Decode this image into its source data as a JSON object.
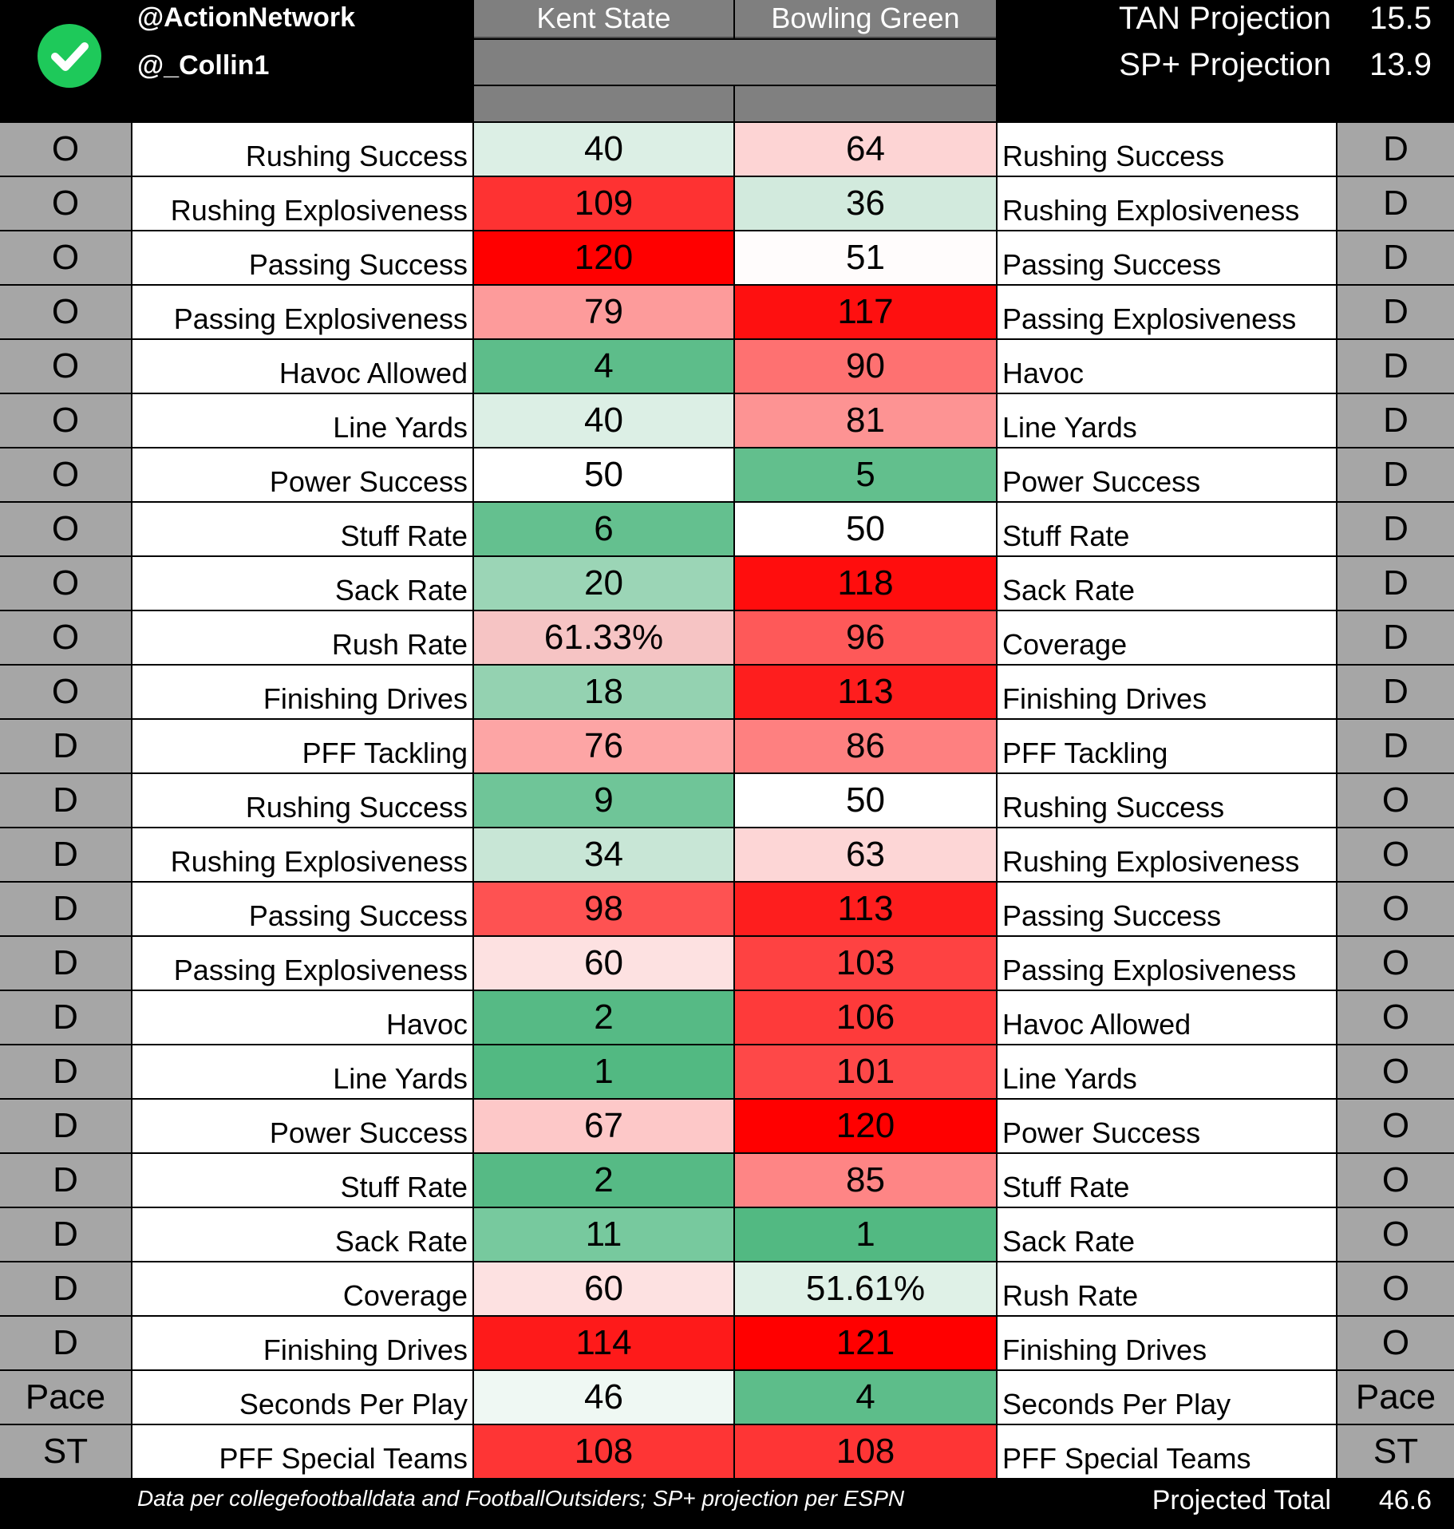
{
  "header": {
    "handle_1": "@ActionNetwork",
    "handle_2": "@_Collin1",
    "team_left": "Kent State",
    "team_right": "Bowling Green",
    "tan_label": "TAN Projection",
    "tan_value": "15.5",
    "sp_label": "SP+ Projection",
    "sp_value": "13.9"
  },
  "rows": [
    {
      "side_l": "O",
      "label_l": "Rushing Success",
      "kent": "40",
      "kent_color": "#dcefe5",
      "bg": "64",
      "bg_color": "#fdd4d4",
      "label_r": "Rushing Success",
      "side_r": "D"
    },
    {
      "side_l": "O",
      "label_l": "Rushing Explosiveness",
      "kent": "109",
      "kent_color": "#fe3232",
      "bg": "36",
      "bg_color": "#d2eadd",
      "label_r": "Rushing Explosiveness",
      "side_r": "D"
    },
    {
      "side_l": "O",
      "label_l": "Passing Success",
      "kent": "120",
      "kent_color": "#ff0000",
      "bg": "51",
      "bg_color": "#fffcfc",
      "label_r": "Passing Success",
      "side_r": "D"
    },
    {
      "side_l": "O",
      "label_l": "Passing Explosiveness",
      "kent": "79",
      "kent_color": "#fd9b9b",
      "bg": "117",
      "bg_color": "#fe1010",
      "label_r": "Passing Explosiveness",
      "side_r": "D"
    },
    {
      "side_l": "O",
      "label_l": "Havoc Allowed",
      "kent": "4",
      "kent_color": "#5dbd8a",
      "bg": "90",
      "bg_color": "#fe7171",
      "label_r": "Havoc",
      "side_r": "D"
    },
    {
      "side_l": "O",
      "label_l": "Line Yards",
      "kent": "40",
      "kent_color": "#dcefe5",
      "bg": "81",
      "bg_color": "#fd9393",
      "label_r": "Line Yards",
      "side_r": "D"
    },
    {
      "side_l": "O",
      "label_l": "Power Success",
      "kent": "50",
      "kent_color": "#ffffff",
      "bg": "5",
      "bg_color": "#62bf8d",
      "label_r": "Power Success",
      "side_r": "D"
    },
    {
      "side_l": "O",
      "label_l": "Stuff Rate",
      "kent": "6",
      "kent_color": "#64c08f",
      "bg": "50",
      "bg_color": "#ffffff",
      "label_r": "Stuff Rate",
      "side_r": "D"
    },
    {
      "side_l": "O",
      "label_l": "Sack Rate",
      "kent": "20",
      "kent_color": "#9bd5b6",
      "bg": "118",
      "bg_color": "#ff0d0d",
      "label_r": "Sack Rate",
      "side_r": "D"
    },
    {
      "side_l": "O",
      "label_l": "Rush Rate",
      "kent": "61.33%",
      "kent_color": "#f6c4c4",
      "bg": "96",
      "bg_color": "#fe5959",
      "label_r": "Coverage",
      "side_r": "D"
    },
    {
      "side_l": "O",
      "label_l": "Finishing Drives",
      "kent": "18",
      "kent_color": "#94d2b1",
      "bg": "113",
      "bg_color": "#fe1e1e",
      "label_r": "Finishing Drives",
      "side_r": "D"
    },
    {
      "side_l": "D",
      "label_l": "PFF Tackling",
      "kent": "76",
      "kent_color": "#fda5a5",
      "bg": "86",
      "bg_color": "#fe8080",
      "label_r": "PFF Tackling",
      "side_r": "D"
    },
    {
      "side_l": "D",
      "label_l": "Rushing Success",
      "kent": "9",
      "kent_color": "#6fc598",
      "bg": "50",
      "bg_color": "#ffffff",
      "label_r": "Rushing Success",
      "side_r": "O"
    },
    {
      "side_l": "D",
      "label_l": "Rushing Explosiveness",
      "kent": "34",
      "kent_color": "#c8e6d6",
      "bg": "63",
      "bg_color": "#fdd6d6",
      "label_r": "Rushing Explosiveness",
      "side_r": "O"
    },
    {
      "side_l": "D",
      "label_l": "Passing Success",
      "kent": "98",
      "kent_color": "#fe5252",
      "bg": "113",
      "bg_color": "#fe1e1e",
      "label_r": "Passing Success",
      "side_r": "O"
    },
    {
      "side_l": "D",
      "label_l": "Passing Explosiveness",
      "kent": "60",
      "kent_color": "#fde1e1",
      "bg": "103",
      "bg_color": "#fe4242",
      "label_r": "Passing Explosiveness",
      "side_r": "O"
    },
    {
      "side_l": "D",
      "label_l": "Havoc",
      "kent": "2",
      "kent_color": "#56ba85",
      "bg": "106",
      "bg_color": "#fe3a3a",
      "label_r": "Havoc Allowed",
      "side_r": "O"
    },
    {
      "side_l": "D",
      "label_l": "Line Yards",
      "kent": "1",
      "kent_color": "#52b982",
      "bg": "101",
      "bg_color": "#fe4848",
      "label_r": "Line Yards",
      "side_r": "O"
    },
    {
      "side_l": "D",
      "label_l": "Power Success",
      "kent": "67",
      "kent_color": "#fdc8c8",
      "bg": "120",
      "bg_color": "#ff0000",
      "label_r": "Power Success",
      "side_r": "O"
    },
    {
      "side_l": "D",
      "label_l": "Stuff Rate",
      "kent": "2",
      "kent_color": "#56ba85",
      "bg": "85",
      "bg_color": "#fe8585",
      "label_r": "Stuff Rate",
      "side_r": "O"
    },
    {
      "side_l": "D",
      "label_l": "Sack Rate",
      "kent": "11",
      "kent_color": "#77c99e",
      "bg": "1",
      "bg_color": "#52b982",
      "label_r": "Sack Rate",
      "side_r": "O"
    },
    {
      "side_l": "D",
      "label_l": "Coverage",
      "kent": "60",
      "kent_color": "#fde1e1",
      "bg": "51.61%",
      "bg_color": "#dff1e7",
      "label_r": "Rush Rate",
      "side_r": "O"
    },
    {
      "side_l": "D",
      "label_l": "Finishing Drives",
      "kent": "114",
      "kent_color": "#fe1a1a",
      "bg": "121",
      "bg_color": "#ff0000",
      "label_r": "Finishing Drives",
      "side_r": "O"
    },
    {
      "side_l": "Pace",
      "label_l": "Seconds Per Play",
      "kent": "46",
      "kent_color": "#eff8f3",
      "bg": "4",
      "bg_color": "#5dbd8a",
      "label_r": "Seconds Per Play",
      "side_r": "Pace"
    },
    {
      "side_l": "ST",
      "label_l": "PFF Special Teams",
      "kent": "108",
      "kent_color": "#fe3535",
      "bg": "108",
      "bg_color": "#fe3535",
      "label_r": "PFF Special Teams",
      "side_r": "ST"
    }
  ],
  "footer": {
    "note": "Data per collegefootballdata and FootballOutsiders; SP+ projection per ESPN",
    "total_label": "Projected Total",
    "total_value": "46.6"
  },
  "colors": {
    "background": "#000000",
    "header_grey": "#808080",
    "side_grey": "#a6a6a6",
    "check_green": "#1ec95a"
  },
  "icons": {
    "logo": "checkmark-circle-icon"
  }
}
